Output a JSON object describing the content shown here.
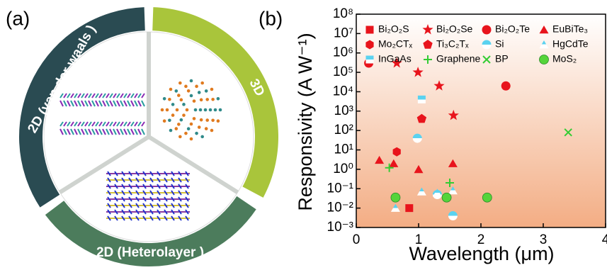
{
  "panels": {
    "a": "(a)",
    "b": "(b)"
  },
  "diagram": {
    "segments": [
      "2D (van der waals )",
      "3D",
      "2D (Heterolayer )"
    ]
  },
  "chart_data": {
    "type": "scatter",
    "x_label": "Wavelength (μm)",
    "y_label": "Responsivity (A W⁻¹)",
    "xlim": [
      0,
      4
    ],
    "xticks": [
      0,
      1,
      2,
      3,
      4
    ],
    "ylim": [
      0.001,
      100000000
    ],
    "log_y": true,
    "yticks": [
      {
        "value": 0.001,
        "label": "10⁻³"
      },
      {
        "value": 0.01,
        "label": "10⁻²"
      },
      {
        "value": 0.1,
        "label": "10⁻¹"
      },
      {
        "value": 1,
        "label": "10⁰"
      },
      {
        "value": 10,
        "label": "10¹"
      },
      {
        "value": 100,
        "label": "10²"
      },
      {
        "value": 1000,
        "label": "10³"
      },
      {
        "value": 10000,
        "label": "10⁴"
      },
      {
        "value": 100000,
        "label": "10⁵"
      },
      {
        "value": 1000000,
        "label": "10⁶"
      },
      {
        "value": 10000000,
        "label": "10⁷"
      },
      {
        "value": 100000000,
        "label": "10⁸"
      }
    ],
    "series": [
      {
        "name": "Bi₂O₂S",
        "color": "#e8141c",
        "marker": "square",
        "x": [
          0.85
        ],
        "values": [
          0.01
        ]
      },
      {
        "name": "Bi₂O₂Se",
        "color": "#e8141c",
        "marker": "star",
        "x": [
          0.65,
          0.99,
          1.33,
          1.56
        ],
        "values": [
          300000,
          100000,
          20000,
          600
        ]
      },
      {
        "name": "Bi₂O₂Te",
        "color": "#e8141c",
        "marker": "circle",
        "x": [
          0.2,
          2.4
        ],
        "values": [
          300000,
          20000
        ]
      },
      {
        "name": "EuBiTe₃",
        "color": "#e8141c",
        "marker": "triangle",
        "x": [
          0.37,
          0.6,
          1.0,
          1.55
        ],
        "values": [
          3,
          2,
          1,
          2
        ]
      },
      {
        "name": "Mo₂CTₓ",
        "color": "#e8141c",
        "marker": "hexagon",
        "x": [
          0.65
        ],
        "values": [
          8
        ]
      },
      {
        "name": "Ti₃C₂Tₓ",
        "color": "#e8141c",
        "marker": "pentagon",
        "x": [
          1.05
        ],
        "values": [
          400
        ]
      },
      {
        "name": "Si",
        "color": "#5ad2f0",
        "marker": "halfcircle",
        "x": [
          0.98,
          1.3,
          1.55
        ],
        "values": [
          40,
          0.05,
          0.004
        ]
      },
      {
        "name": "HgCdTe",
        "color": "#5ad2f0",
        "marker": "halftriangle",
        "x": [
          0.63,
          1.05,
          1.3,
          1.55
        ],
        "values": [
          0.01,
          0.07,
          0.06,
          0.08
        ]
      },
      {
        "name": "InGaAs",
        "color": "#5ad2f0",
        "marker": "halfsquare",
        "x": [
          1.05
        ],
        "values": [
          4000
        ]
      },
      {
        "name": "Graphene",
        "color": "#33cc33",
        "marker": "plus",
        "x": [
          0.53,
          1.5
        ],
        "values": [
          1.2,
          0.2
        ]
      },
      {
        "name": "BP",
        "color": "#33cc33",
        "marker": "cross",
        "x": [
          3.4
        ],
        "values": [
          80
        ]
      },
      {
        "name": "MoS₂",
        "color": "#55d43a",
        "marker": "circle",
        "x": [
          0.63,
          1.45,
          2.1
        ],
        "values": [
          0.035,
          0.035,
          0.035
        ]
      }
    ],
    "legend_columns": 4
  }
}
